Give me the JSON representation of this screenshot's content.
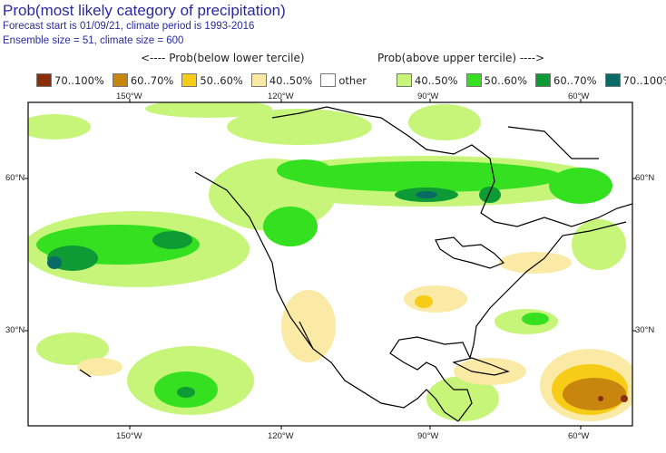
{
  "title": "Prob(most likely category of precipitation)",
  "subtitle1": "Forecast start is 01/09/21, climate period is 1993-2016",
  "subtitle2": "Ensemble size = 51, climate size = 600",
  "below_header": "<---- Prob(below lower tercile)",
  "above_header": "Prob(above upper tercile) ---->",
  "legend": [
    {
      "label": "70..100%",
      "color": "#8b2e0a"
    },
    {
      "label": "60..70%",
      "color": "#c8860f"
    },
    {
      "label": "50..60%",
      "color": "#f7cc16"
    },
    {
      "label": "40..50%",
      "color": "#fbe9a6"
    },
    {
      "label": "other",
      "color": "#ffffff"
    },
    {
      "label": "40..50%",
      "color": "#c6f57a"
    },
    {
      "label": "50..60%",
      "color": "#35e020"
    },
    {
      "label": "60..70%",
      "color": "#0e9a35"
    },
    {
      "label": "70..100%",
      "color": "#0a6a66"
    }
  ],
  "lon_labels": [
    "150°W",
    "120°W",
    "90°W",
    "60°W"
  ],
  "lat_labels": [
    "60°N",
    "30°N"
  ]
}
